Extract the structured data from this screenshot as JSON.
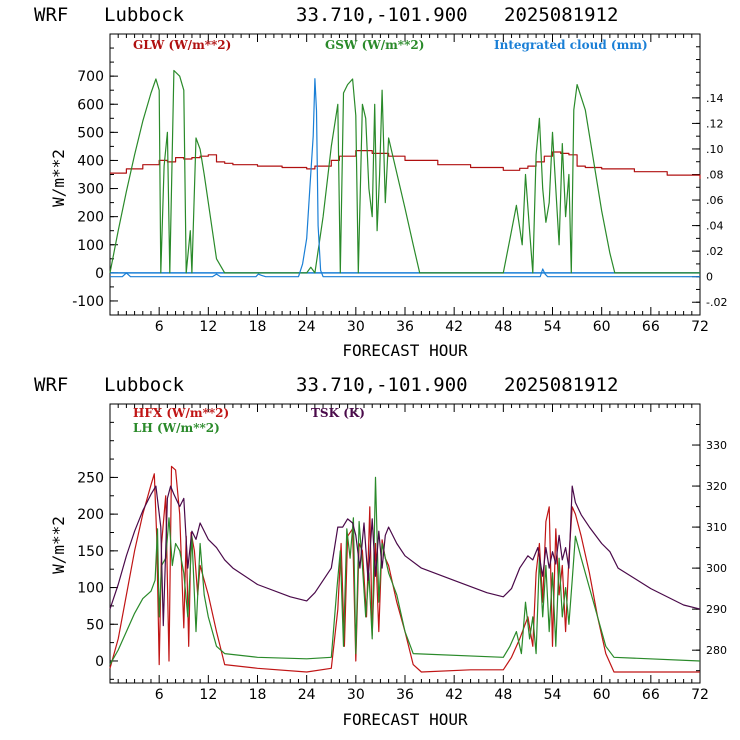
{
  "chart_data": [
    {
      "type": "line",
      "header": {
        "model": "WRF",
        "site": "Lubbock",
        "coords": "33.710,-101.900",
        "init": "2025081912"
      },
      "xlabel": "FORECAST HOUR",
      "ylabel": "W/m**2",
      "xlim": [
        0,
        72
      ],
      "ylim": [
        -150,
        850
      ],
      "y2lim": [
        -0.03,
        0.19
      ],
      "xticks": [
        "6",
        "12",
        "18",
        "24",
        "30",
        "36",
        "42",
        "48",
        "54",
        "60",
        "66",
        "72"
      ],
      "yticks": [
        "-100",
        "0",
        "100",
        "200",
        "300",
        "400",
        "500",
        "600",
        "700"
      ],
      "y2ticks": [
        "-.02",
        "0",
        ".02",
        ".04",
        ".06",
        ".08",
        ".10",
        ".12",
        ".14"
      ],
      "legend_placement": "top",
      "series": [
        {
          "name": "GLW (W/m**2)",
          "color": "#b01010",
          "axis": "left",
          "x": [
            0,
            2,
            4,
            6,
            7,
            8,
            9,
            10,
            11,
            12,
            13,
            14,
            15,
            18,
            21,
            24,
            25,
            27,
            28,
            30,
            32,
            34,
            36,
            40,
            44,
            48,
            50,
            51,
            52,
            53,
            54,
            55,
            56,
            57,
            58,
            60,
            64,
            68,
            72
          ],
          "y": [
            355,
            370,
            385,
            400,
            395,
            410,
            405,
            410,
            415,
            420,
            395,
            390,
            385,
            380,
            375,
            370,
            380,
            400,
            415,
            435,
            425,
            415,
            400,
            385,
            375,
            365,
            372,
            380,
            395,
            415,
            430,
            425,
            420,
            380,
            375,
            370,
            360,
            348,
            335
          ]
        },
        {
          "name": "GSW (W/m**2)",
          "color": "#2a8a2a",
          "axis": "left",
          "x": [
            0,
            1,
            2,
            3,
            4,
            5,
            5.6,
            6.0,
            6.2,
            6.6,
            7.0,
            7.3,
            7.8,
            8.5,
            9.0,
            9.3,
            9.8,
            10.0,
            10.5,
            11.0,
            11.5,
            12.0,
            12.5,
            13.0,
            14.0,
            24.0,
            24.5,
            25.0,
            26.0,
            27.0,
            27.8,
            28.1,
            28.5,
            29.0,
            29.6,
            30.0,
            30.3,
            30.8,
            31.2,
            31.6,
            32.0,
            32.3,
            32.6,
            32.9,
            33.2,
            33.6,
            34.0,
            36.0,
            37.0,
            37.8,
            48.0,
            48.8,
            49.6,
            50.3,
            50.7,
            51.2,
            51.6,
            52.0,
            52.4,
            52.8,
            53.2,
            53.6,
            54.0,
            54.4,
            54.8,
            55.2,
            55.6,
            56.0,
            56.3,
            56.6,
            57.0,
            58.0,
            59.0,
            60.0,
            61.0,
            61.6,
            72.0
          ],
          "y": [
            0,
            150,
            290,
            420,
            540,
            640,
            690,
            650,
            0,
            380,
            500,
            0,
            720,
            700,
            650,
            0,
            150,
            0,
            480,
            440,
            350,
            250,
            150,
            50,
            0,
            0,
            20,
            0,
            200,
            450,
            600,
            0,
            640,
            670,
            690,
            560,
            0,
            600,
            550,
            300,
            200,
            600,
            150,
            350,
            650,
            250,
            480,
            230,
            100,
            0,
            0,
            120,
            240,
            100,
            350,
            150,
            0,
            420,
            550,
            300,
            180,
            250,
            500,
            300,
            100,
            460,
            200,
            350,
            0,
            580,
            670,
            580,
            400,
            220,
            70,
            0,
            0
          ]
        },
        {
          "name": "Integrated cloud (mm)",
          "color": "#1a7fd6",
          "axis": "right",
          "x": [
            0,
            1.5,
            2.0,
            2.5,
            3.0,
            12.5,
            13.0,
            13.5,
            14.0,
            17.8,
            18.1,
            18.5,
            19.0,
            23.0,
            23.5,
            24.0,
            24.4,
            24.8,
            25.0,
            25.2,
            25.4,
            25.7,
            26.0,
            52.5,
            52.8,
            53.1,
            53.4,
            72.0
          ],
          "y": [
            0,
            0,
            0.003,
            0,
            0,
            0,
            0.002,
            0,
            0,
            0,
            0.002,
            0.001,
            0,
            0,
            0.01,
            0.03,
            0.07,
            0.11,
            0.155,
            0.13,
            0.04,
            0.005,
            0,
            0,
            0.006,
            0.002,
            0,
            0
          ]
        }
      ]
    },
    {
      "type": "line",
      "header": {
        "model": "WRF",
        "site": "Lubbock",
        "coords": "33.710,-101.900",
        "init": "2025081912"
      },
      "xlabel": "FORECAST HOUR",
      "ylabel": "W/m**2",
      "xlim": [
        0,
        72
      ],
      "ylim": [
        -30,
        350
      ],
      "y2lim": [
        272,
        340
      ],
      "xticks": [
        "6",
        "12",
        "18",
        "24",
        "30",
        "36",
        "42",
        "48",
        "54",
        "60",
        "66",
        "72"
      ],
      "yticks": [
        "0",
        "50",
        "100",
        "150",
        "200",
        "250"
      ],
      "y2ticks": [
        "280",
        "290",
        "300",
        "310",
        "320",
        "330"
      ],
      "legend_placement": "top-left",
      "series": [
        {
          "name": "HFX (W/m**2)",
          "color": "#c01515",
          "axis": "left",
          "x": [
            0,
            1,
            2,
            3,
            4,
            5,
            5.4,
            5.7,
            6.0,
            6.3,
            6.8,
            7.2,
            7.5,
            8.0,
            8.5,
            9.0,
            9.3,
            9.6,
            9.9,
            10.3,
            10.7,
            11.0,
            12.0,
            13.0,
            14.0,
            18.0,
            24.0,
            27.0,
            27.8,
            28.2,
            28.6,
            29.0,
            29.6,
            30.0,
            30.4,
            30.8,
            31.3,
            31.7,
            32.0,
            32.4,
            32.8,
            33.2,
            33.6,
            34.0,
            35.0,
            36.0,
            37.0,
            38.0,
            44.0,
            48.0,
            49.0,
            50.0,
            51.0,
            51.6,
            52.0,
            52.4,
            52.8,
            53.2,
            53.6,
            54.0,
            54.4,
            54.8,
            55.2,
            55.6,
            56.0,
            56.4,
            56.8,
            57.5,
            58.5,
            59.5,
            60.5,
            61.5,
            72.0
          ],
          "y": [
            -10,
            30,
            90,
            150,
            200,
            240,
            255,
            170,
            -5,
            160,
            225,
            0,
            265,
            260,
            200,
            45,
            170,
            20,
            175,
            150,
            90,
            130,
            90,
            40,
            -5,
            -10,
            -15,
            -10,
            70,
            160,
            20,
            170,
            180,
            0,
            160,
            150,
            60,
            210,
            35,
            160,
            40,
            165,
            140,
            130,
            80,
            40,
            -5,
            -15,
            -12,
            -12,
            5,
            30,
            60,
            20,
            120,
            160,
            80,
            190,
            210,
            20,
            180,
            90,
            130,
            40,
            140,
            210,
            200,
            170,
            120,
            60,
            10,
            -15,
            -15
          ]
        },
        {
          "name": "LH  (W/m**2)",
          "color": "#2a8a2a",
          "axis": "left",
          "x": [
            0,
            1,
            2,
            3,
            4,
            5,
            5.5,
            5.8,
            6.0,
            6.3,
            6.8,
            7.2,
            7.6,
            8.0,
            8.5,
            9.0,
            9.5,
            10.0,
            10.5,
            11.0,
            11.5,
            12.0,
            13.0,
            14.0,
            18.0,
            24.0,
            27.0,
            27.7,
            28.1,
            28.5,
            28.9,
            29.3,
            29.7,
            30.0,
            30.4,
            30.8,
            31.2,
            31.6,
            32.0,
            32.4,
            32.8,
            33.2,
            34.0,
            35.0,
            36.0,
            37.0,
            48.0,
            48.8,
            49.6,
            50.2,
            50.7,
            51.2,
            51.6,
            52.0,
            52.4,
            52.8,
            53.2,
            53.6,
            54.0,
            54.4,
            54.8,
            55.2,
            55.6,
            56.0,
            56.4,
            56.8,
            57.5,
            58.5,
            59.5,
            60.5,
            61.5,
            72.0
          ],
          "y": [
            -5,
            15,
            40,
            65,
            85,
            95,
            110,
            180,
            60,
            130,
            140,
            195,
            130,
            160,
            150,
            120,
            60,
            170,
            40,
            160,
            90,
            60,
            20,
            10,
            5,
            3,
            5,
            100,
            150,
            20,
            180,
            140,
            195,
            10,
            190,
            130,
            60,
            120,
            30,
            250,
            80,
            160,
            120,
            90,
            40,
            10,
            5,
            20,
            40,
            10,
            80,
            30,
            60,
            10,
            140,
            60,
            130,
            40,
            120,
            20,
            140,
            60,
            100,
            50,
            110,
            170,
            140,
            100,
            60,
            20,
            5,
            0
          ]
        },
        {
          "name": "TSK (K)",
          "color": "#4a0a4a",
          "axis": "right",
          "x": [
            0,
            1,
            2,
            3,
            4,
            5,
            5.6,
            6.2,
            6.5,
            7.0,
            7.4,
            7.8,
            8.5,
            9.0,
            9.5,
            10.0,
            10.5,
            11.0,
            12.0,
            13.0,
            14.0,
            15.0,
            18.0,
            22.0,
            24.0,
            25.0,
            27.0,
            27.8,
            28.4,
            29.0,
            29.6,
            30.0,
            30.5,
            31.0,
            31.5,
            32.0,
            32.4,
            32.8,
            33.2,
            33.6,
            34.0,
            35.0,
            36.0,
            38.0,
            42.0,
            46.0,
            48.0,
            49.0,
            50.0,
            51.0,
            51.6,
            52.2,
            52.8,
            53.2,
            53.6,
            54.0,
            54.4,
            54.8,
            55.2,
            55.6,
            56.0,
            56.4,
            56.8,
            57.5,
            58.5,
            60.0,
            61.0,
            62.0,
            66.0,
            70.0,
            72.0
          ],
          "y": [
            290,
            296,
            303,
            309,
            314,
            318,
            320,
            310,
            286,
            317,
            320,
            318,
            315,
            317,
            300,
            309,
            307,
            311,
            307,
            305,
            302,
            300,
            296,
            293,
            292,
            294,
            300,
            310,
            310,
            312,
            311,
            308,
            300,
            311,
            297,
            312,
            298,
            309,
            300,
            308,
            310,
            306,
            303,
            300,
            297,
            294,
            293,
            295,
            300,
            303,
            302,
            305,
            298,
            305,
            300,
            304,
            301,
            308,
            302,
            305,
            300,
            320,
            316,
            313,
            310,
            306,
            304,
            300,
            295,
            291,
            290
          ]
        }
      ]
    }
  ]
}
